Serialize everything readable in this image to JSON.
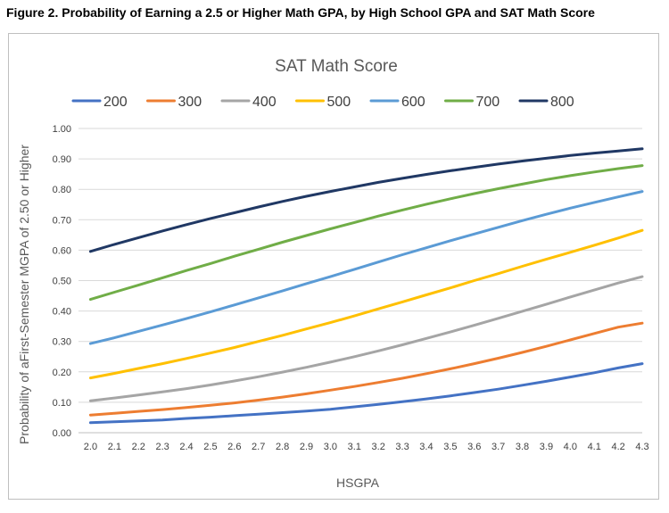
{
  "figure_title": "Figure 2. Probability of Earning a 2.5 or Higher Math GPA, by High School GPA and SAT Math Score",
  "chart_data": {
    "type": "line",
    "title": "SAT Math Score",
    "xlabel": "HSGPA",
    "ylabel": "Probability of aFirst-Semester MGPA of 2.50 or Higher",
    "legend_position": "top",
    "grid": true,
    "ylim": [
      0,
      1
    ],
    "y_ticks": [
      "0.00",
      "0.10",
      "0.20",
      "0.30",
      "0.40",
      "0.50",
      "0.60",
      "0.70",
      "0.80",
      "0.90",
      "1.00"
    ],
    "x": [
      "2.0",
      "2.1",
      "2.2",
      "2.3",
      "2.4",
      "2.5",
      "2.6",
      "2.7",
      "2.8",
      "2.9",
      "3.0",
      "3.1",
      "3.2",
      "3.3",
      "3.4",
      "3.5",
      "3.6",
      "3.7",
      "3.8",
      "3.9",
      "4.0",
      "4.1",
      "4.2",
      "4.3"
    ],
    "series": [
      {
        "name": "200",
        "color": "#4472c4",
        "values": [
          0.033,
          0.036,
          0.039,
          0.042,
          0.047,
          0.051,
          0.056,
          0.061,
          0.066,
          0.071,
          0.077,
          0.085,
          0.093,
          0.102,
          0.111,
          0.121,
          0.132,
          0.143,
          0.156,
          0.169,
          0.183,
          0.197,
          0.213,
          0.227
        ]
      },
      {
        "name": "300",
        "color": "#ed7d31",
        "values": [
          0.058,
          0.064,
          0.07,
          0.076,
          0.083,
          0.09,
          0.098,
          0.107,
          0.117,
          0.128,
          0.14,
          0.152,
          0.165,
          0.179,
          0.194,
          0.21,
          0.227,
          0.245,
          0.264,
          0.284,
          0.305,
          0.326,
          0.347,
          0.36
        ]
      },
      {
        "name": "400",
        "color": "#a5a5a5",
        "values": [
          0.105,
          0.114,
          0.124,
          0.134,
          0.145,
          0.157,
          0.17,
          0.184,
          0.199,
          0.215,
          0.232,
          0.25,
          0.269,
          0.289,
          0.31,
          0.331,
          0.353,
          0.376,
          0.399,
          0.422,
          0.446,
          0.469,
          0.492,
          0.513
        ]
      },
      {
        "name": "500",
        "color": "#ffc000",
        "values": [
          0.18,
          0.195,
          0.211,
          0.227,
          0.244,
          0.262,
          0.28,
          0.3,
          0.32,
          0.341,
          0.362,
          0.384,
          0.407,
          0.43,
          0.453,
          0.476,
          0.5,
          0.523,
          0.547,
          0.57,
          0.593,
          0.616,
          0.64,
          0.665
        ]
      },
      {
        "name": "600",
        "color": "#5b9bd5",
        "values": [
          0.293,
          0.312,
          0.333,
          0.354,
          0.375,
          0.397,
          0.42,
          0.443,
          0.466,
          0.49,
          0.513,
          0.537,
          0.561,
          0.585,
          0.608,
          0.631,
          0.653,
          0.675,
          0.697,
          0.718,
          0.738,
          0.757,
          0.775,
          0.793
        ]
      },
      {
        "name": "700",
        "color": "#70ad47",
        "values": [
          0.438,
          0.462,
          0.485,
          0.509,
          0.533,
          0.556,
          0.58,
          0.603,
          0.626,
          0.648,
          0.67,
          0.691,
          0.712,
          0.732,
          0.751,
          0.769,
          0.786,
          0.802,
          0.817,
          0.832,
          0.845,
          0.857,
          0.868,
          0.878
        ]
      },
      {
        "name": "800",
        "color": "#203864",
        "values": [
          0.596,
          0.619,
          0.641,
          0.663,
          0.684,
          0.704,
          0.723,
          0.742,
          0.76,
          0.777,
          0.793,
          0.808,
          0.823,
          0.836,
          0.849,
          0.861,
          0.872,
          0.883,
          0.893,
          0.902,
          0.911,
          0.919,
          0.926,
          0.933
        ]
      }
    ]
  }
}
